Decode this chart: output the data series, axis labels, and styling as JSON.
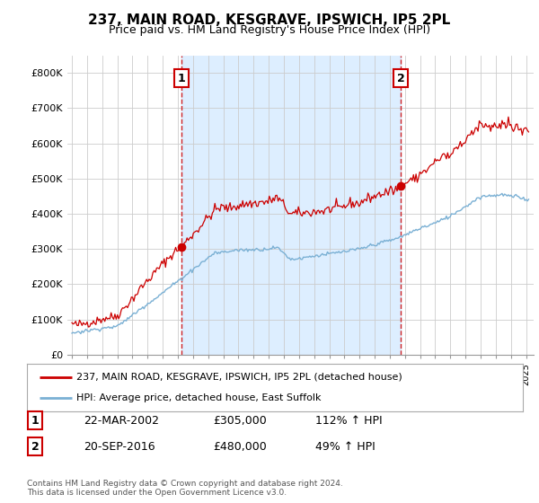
{
  "title": "237, MAIN ROAD, KESGRAVE, IPSWICH, IP5 2PL",
  "subtitle": "Price paid vs. HM Land Registry's House Price Index (HPI)",
  "red_label": "237, MAIN ROAD, KESGRAVE, IPSWICH, IP5 2PL (detached house)",
  "blue_label": "HPI: Average price, detached house, East Suffolk",
  "footer": "Contains HM Land Registry data © Crown copyright and database right 2024.\nThis data is licensed under the Open Government Licence v3.0.",
  "ylim_min": 0,
  "ylim_max": 850000,
  "yticks": [
    0,
    100000,
    200000,
    300000,
    400000,
    500000,
    600000,
    700000,
    800000
  ],
  "background_color": "#ffffff",
  "grid_color": "#cccccc",
  "shaded_color": "#ddeeff",
  "red_color": "#cc0000",
  "blue_color": "#7ab0d4",
  "t1_x": 2002.22,
  "t1_y": 305000,
  "t2_x": 2016.72,
  "t2_y": 480000,
  "xmin": 1994.7,
  "xmax": 2025.5
}
